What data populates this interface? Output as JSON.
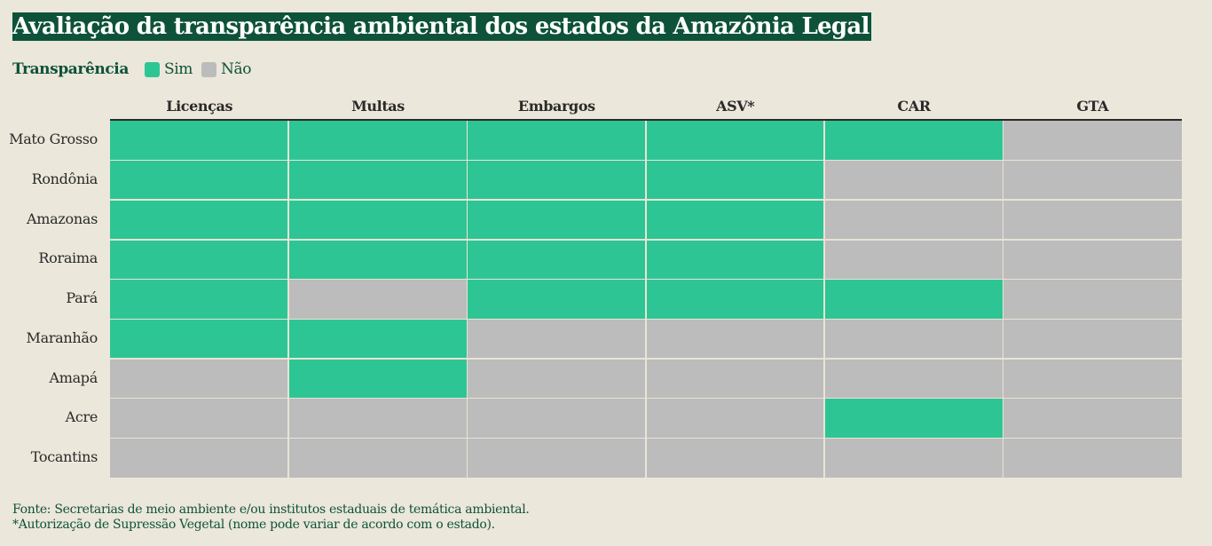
{
  "title": "Avaliação da transparência ambiental dos estados da Amazônia Legal",
  "legend": {
    "title": "Transparência",
    "items": [
      {
        "label": "Sim",
        "color": "#2ec595"
      },
      {
        "label": "Não",
        "color": "#bdbcbc"
      }
    ]
  },
  "footnotes": [
    "Fonte: Secretarias de meio ambiente e/ou institutos estaduais de temática ambiental.",
    "*Autorização de Supressão Vegetal (nome pode variar de acordo com o estado)."
  ],
  "chart_data": {
    "type": "heatmap",
    "title": "Avaliação da transparência ambiental dos estados da Amazônia Legal",
    "columns": [
      "Licenças",
      "Multas",
      "Embargos",
      "ASV*",
      "CAR",
      "GTA"
    ],
    "rows": [
      "Mato Grosso",
      "Rondônia",
      "Amazonas",
      "Roraima",
      "Pará",
      "Maranhão",
      "Amapá",
      "Acre",
      "Tocantins"
    ],
    "legend_title": "Transparência",
    "categories": [
      "Sim",
      "Não"
    ],
    "values": [
      [
        "Sim",
        "Sim",
        "Sim",
        "Sim",
        "Sim",
        "Não"
      ],
      [
        "Sim",
        "Sim",
        "Sim",
        "Sim",
        "Não",
        "Não"
      ],
      [
        "Sim",
        "Sim",
        "Sim",
        "Sim",
        "Não",
        "Não"
      ],
      [
        "Sim",
        "Sim",
        "Sim",
        "Sim",
        "Não",
        "Não"
      ],
      [
        "Sim",
        "Não",
        "Sim",
        "Sim",
        "Sim",
        "Não"
      ],
      [
        "Sim",
        "Sim",
        "Não",
        "Não",
        "Não",
        "Não"
      ],
      [
        "Não",
        "Sim",
        "Não",
        "Não",
        "Não",
        "Não"
      ],
      [
        "Não",
        "Não",
        "Não",
        "Não",
        "Sim",
        "Não"
      ],
      [
        "Não",
        "Não",
        "Não",
        "Não",
        "Não",
        "Não"
      ]
    ],
    "colors": {
      "Sim": "#2ec595",
      "Não": "#bdbcbc"
    }
  }
}
